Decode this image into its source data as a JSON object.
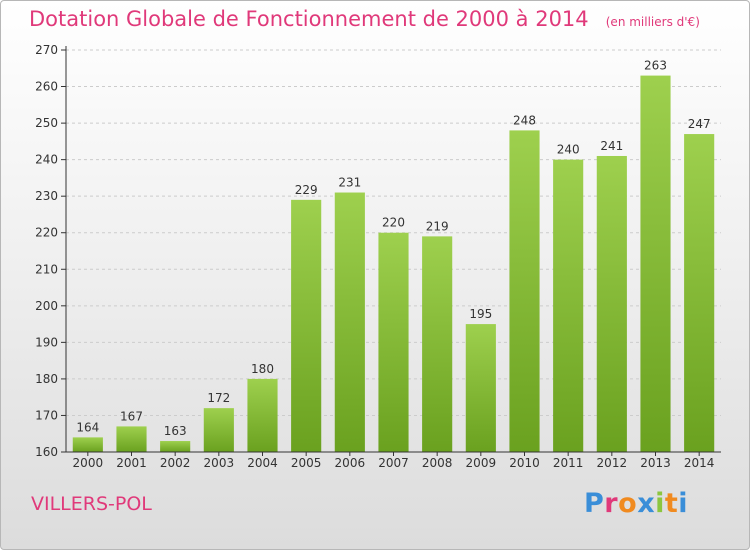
{
  "title": "Dotation Globale de Fonctionnement de 2000 à 2014",
  "subtitle": "(en milliers d'€)",
  "city": "VILLERS-POL",
  "logo": {
    "text": "Proxiti",
    "colors": [
      "#3a8ed8",
      "#e0397a",
      "#f08a1f",
      "#3a8ed8",
      "#8cc63f",
      "#f08a1f",
      "#3a8ed8"
    ]
  },
  "colors": {
    "title": "#e0397a",
    "bar_top": "#9ed04e",
    "bar_bottom": "#6aa11f",
    "grid": "#cccccc",
    "axis": "#333333"
  },
  "chart_data": {
    "type": "bar",
    "title": "Dotation Globale de Fonctionnement de 2000 à 2014",
    "subtitle": "(en milliers d'€)",
    "categories": [
      "2000",
      "2001",
      "2002",
      "2003",
      "2004",
      "2005",
      "2006",
      "2007",
      "2008",
      "2009",
      "2010",
      "2011",
      "2012",
      "2013",
      "2014"
    ],
    "values": [
      164,
      167,
      163,
      172,
      180,
      229,
      231,
      220,
      219,
      195,
      248,
      240,
      241,
      263,
      247
    ],
    "ylim": [
      160,
      270
    ],
    "yticks": [
      160,
      170,
      180,
      190,
      200,
      210,
      220,
      230,
      240,
      250,
      260,
      270
    ],
    "grid": true,
    "legend": "none",
    "data_labels": true
  }
}
